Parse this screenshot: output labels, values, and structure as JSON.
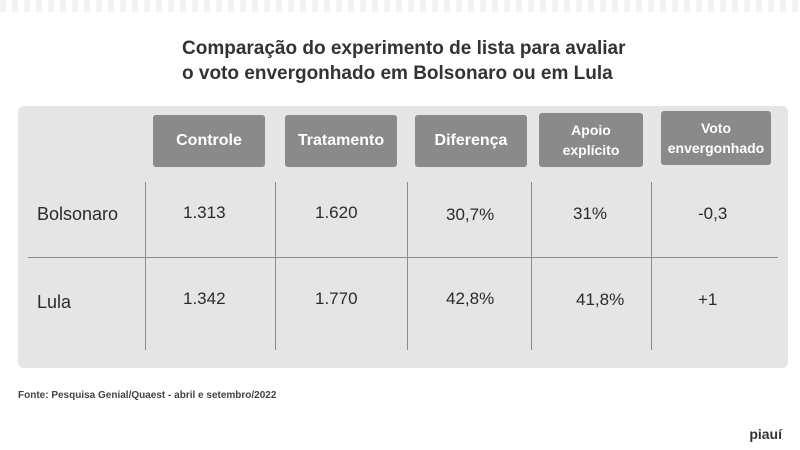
{
  "title_line1": "Comparação do experimento de lista para avaliar",
  "title_line2": "o voto envergonhado em Bolsonaro ou em Lula",
  "source": "Fonte: Pesquisa Genial/Quaest - abril e setembro/2022",
  "brand": "piauí",
  "colors": {
    "header_bg": "#8a8a8a",
    "panel_bg": "#e5e5e5",
    "text": "#2b2b2b"
  },
  "chart_data": {
    "type": "table",
    "title": "Comparação do experimento de lista para avaliar o voto envergonhado em Bolsonaro ou em Lula",
    "columns": [
      "Controle",
      "Tratamento",
      "Diferença",
      "Apoio explícito",
      "Voto envergonhado"
    ],
    "column_header_lines": [
      [
        "Controle"
      ],
      [
        "Tratamento"
      ],
      [
        "Diferença"
      ],
      [
        "Apoio",
        "explícito"
      ],
      [
        "Voto",
        "envergonhado"
      ]
    ],
    "rows": [
      {
        "label": "Bolsonaro",
        "values": [
          "1.313",
          "1.620",
          "30,7%",
          "31%",
          "-0,3"
        ]
      },
      {
        "label": "Lula",
        "values": [
          "1.342",
          "1.770",
          "42,8%",
          "41,8%",
          "+1"
        ]
      }
    ]
  }
}
